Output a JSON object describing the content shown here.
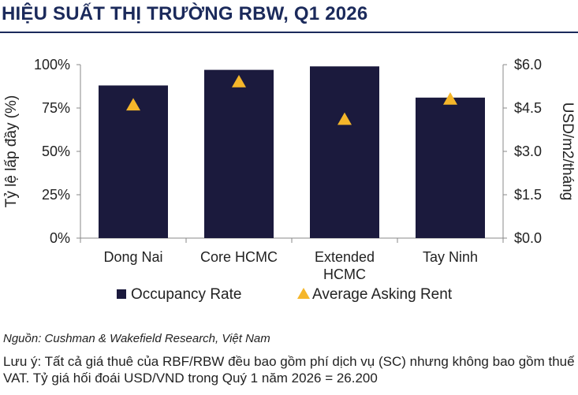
{
  "title": "HIỆU SUẤT THỊ TRƯỜNG RBW, Q1 2026",
  "source": "Nguồn: Cushman & Wakefield Research, Việt Nam",
  "note": "Lưu ý: Tất cả giá thuê của RBF/RBW đều bao gồm phí dịch vụ (SC) nhưng không bao gồm thuế VAT. Tỷ giá hối đoái USD/VND trong Quý 1 năm 2026 = 26.200",
  "colors": {
    "bar": "#1b1a3d",
    "marker": "#f5b62a",
    "axis": "#888888",
    "title": "#1b2a5b"
  },
  "chart_data": {
    "type": "bar",
    "categories": [
      "Dong Nai",
      "Core HCMC",
      "Extended HCMC",
      "Tay Ninh"
    ],
    "series": [
      {
        "name": "Occupancy Rate",
        "type": "bar",
        "axis": "left",
        "values": [
          0.88,
          0.97,
          0.99,
          0.81
        ]
      },
      {
        "name": "Average Asking Rent",
        "type": "scatter",
        "marker": "triangle",
        "axis": "right",
        "values": [
          4.6,
          5.4,
          4.1,
          4.8
        ]
      }
    ],
    "ylabel": "Tỷ lệ lấp đầy (%)",
    "y2label": "USD/m2/tháng",
    "ylim": [
      0,
      1
    ],
    "y2lim": [
      0,
      6
    ],
    "yticks": [
      "0%",
      "25%",
      "50%",
      "75%",
      "100%"
    ],
    "y2ticks": [
      "$0.0",
      "$1.5",
      "$3.0",
      "$4.5",
      "$6.0"
    ],
    "legend_position": "bottom",
    "grid": false
  }
}
